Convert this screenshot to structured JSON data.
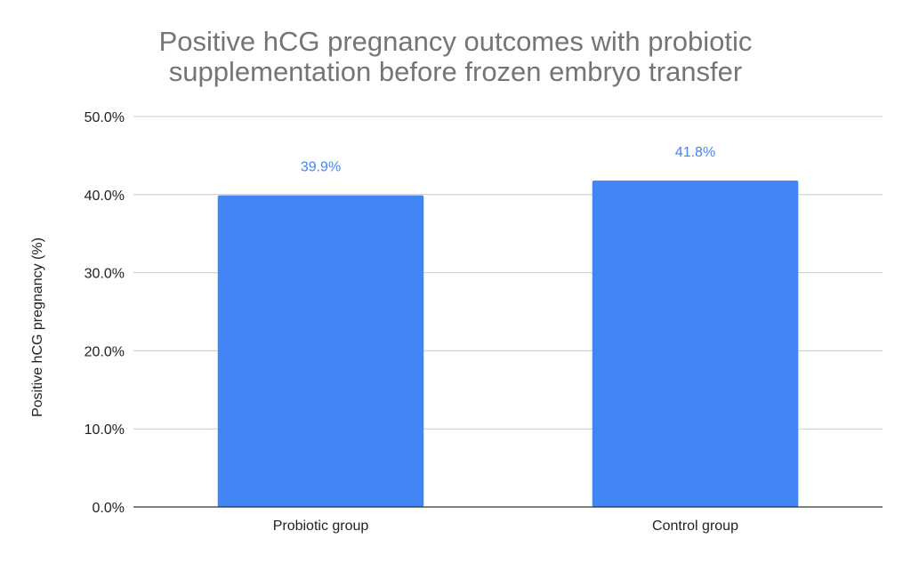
{
  "chart_data": {
    "type": "bar",
    "title_lines": [
      "Positive hCG pregnancy outcomes with probiotic",
      "supplementation before frozen embryo transfer"
    ],
    "xlabel": "",
    "ylabel": "Positive hCG pregnancy (%)",
    "categories": [
      "Probiotic group",
      "Control group"
    ],
    "values": [
      39.9,
      41.8
    ],
    "data_labels": [
      "39.9%",
      "41.8%"
    ],
    "ylim": [
      0,
      50
    ],
    "yticks": [
      0,
      10,
      20,
      30,
      40,
      50
    ],
    "ytick_labels": [
      "0.0%",
      "10.0%",
      "20.0%",
      "30.0%",
      "40.0%",
      "50.0%"
    ],
    "grid": true,
    "legend": "none",
    "colors": {
      "bar": "#4285f4",
      "label": "#4285f4",
      "grid": "#cccccc",
      "axis": "#333333",
      "title": "#757575"
    }
  }
}
